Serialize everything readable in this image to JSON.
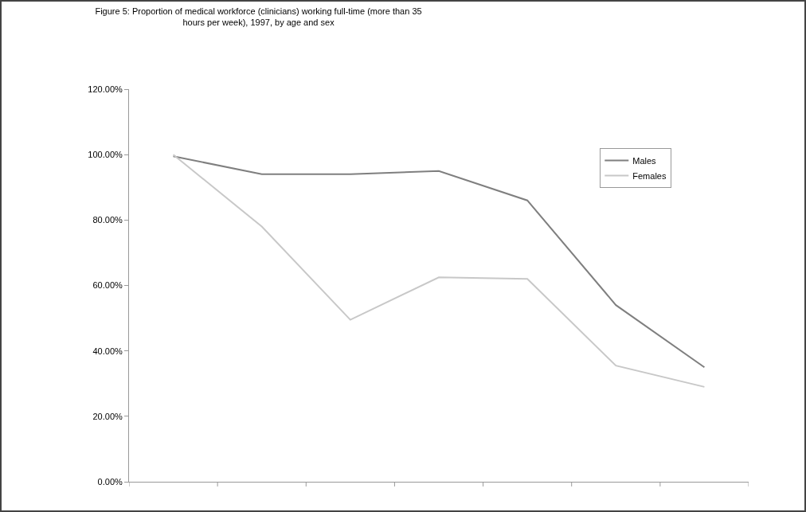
{
  "chart_data": {
    "type": "line",
    "title": "Figure 5: Proportion of medical workforce (clinicians) working full-time (more than 35\nhours per week), 1997, by age and sex",
    "categories": [
      null,
      null,
      null,
      null,
      null,
      null,
      null
    ],
    "series": [
      {
        "name": "Males",
        "color": "#7f7f7f",
        "values": [
          99.5,
          94,
          94,
          95,
          86,
          54,
          35
        ]
      },
      {
        "name": "Females",
        "color": "#c8c8c8",
        "values": [
          100,
          78,
          49.5,
          62.5,
          62,
          35.5,
          29
        ]
      }
    ],
    "ylim": [
      0,
      120
    ],
    "yticks": [
      {
        "value": 0,
        "label": "0.00%"
      },
      {
        "value": 20,
        "label": "20.00%"
      },
      {
        "value": 40,
        "label": "40.00%"
      },
      {
        "value": 60,
        "label": "60.00%"
      },
      {
        "value": 80,
        "label": "80.00%"
      },
      {
        "value": 100,
        "label": "100.00%"
      },
      {
        "value": 120,
        "label": "120.00%"
      }
    ],
    "grid": false,
    "legend": "top right",
    "marker": "none",
    "line_style": "solid"
  }
}
